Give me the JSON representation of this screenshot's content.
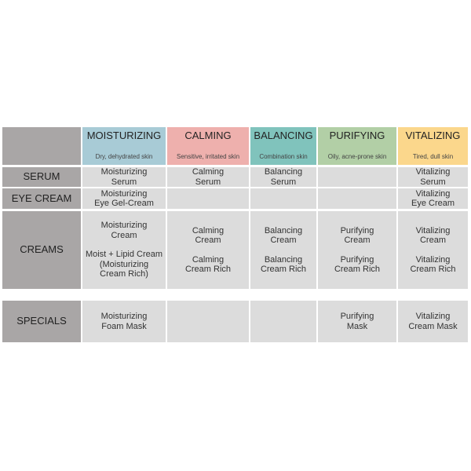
{
  "columns": [
    {
      "title": "MOISTURIZING",
      "subtitle": "Dry, dehydrated skin",
      "color": "#a8cbd6"
    },
    {
      "title": "CALMING",
      "subtitle": "Sensitive, irritated skin",
      "color": "#eeb0ad"
    },
    {
      "title": "BALANCING",
      "subtitle": "Combination skin",
      "color": "#80c3bc"
    },
    {
      "title": "PURIFYING",
      "subtitle": "Oily, acne-prone skin",
      "color": "#b2cfa6"
    },
    {
      "title": "VITALIZING",
      "subtitle": "Tired, dull skin",
      "color": "#fbd78c"
    }
  ],
  "rows": [
    {
      "label": "SERUM",
      "cells": [
        [
          "Moisturizing",
          "Serum"
        ],
        [
          "Calming",
          "Serum"
        ],
        [
          "Balancing",
          "Serum"
        ],
        [],
        [
          "Vitalizing",
          "Serum"
        ]
      ]
    },
    {
      "label": "EYE CREAM",
      "cells": [
        [
          "Moisturizing",
          "Eye Gel-Cream"
        ],
        [],
        [],
        [],
        [
          "Vitalizing",
          "Eye Cream"
        ]
      ]
    },
    {
      "label": "CREAMS",
      "cells": [
        [
          "Moisturizing",
          "Cream",
          "",
          "Moist + Lipid Cream",
          "(Moisturizing",
          "Cream Rich)"
        ],
        [
          "Calming",
          "Cream",
          "",
          "Calming",
          "Cream Rich"
        ],
        [
          "Balancing",
          "Cream",
          "",
          "Balancing",
          "Cream Rich"
        ],
        [
          "Purifying",
          "Cream",
          "",
          "Purifying",
          "Cream Rich"
        ],
        [
          "Vitalizing",
          "Cream",
          "",
          "Vitalizing",
          "Cream Rich"
        ]
      ]
    },
    {
      "label": "SPECIALS",
      "cells": [
        [
          "Moisturizing",
          "Foam Mask"
        ],
        [],
        [],
        [
          "Purifying",
          "Mask"
        ],
        [
          "Vitalizing",
          "Cream Mask"
        ]
      ]
    }
  ],
  "colors": {
    "label_bg": "#a9a6a6",
    "cell_bg": "#dcdcdc"
  }
}
